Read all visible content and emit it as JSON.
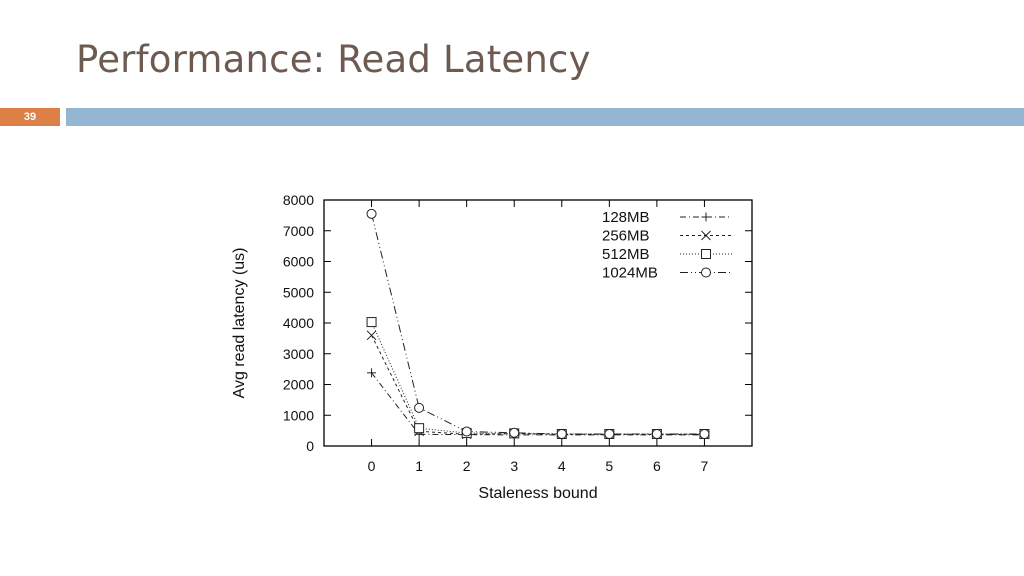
{
  "slide": {
    "title": "Performance: Read Latency",
    "page_number": "39"
  },
  "colors": {
    "title": "#6d5a51",
    "badge": "#dd8047",
    "bar": "#94b6d2"
  },
  "chart_data": {
    "type": "line",
    "title": "",
    "xlabel": "Staleness bound",
    "ylabel": "Avg read latency (us)",
    "x": [
      0,
      1,
      2,
      3,
      4,
      5,
      6,
      7
    ],
    "xlim": [
      -1,
      8
    ],
    "ylim": [
      0,
      8000
    ],
    "x_ticks": [
      "0",
      "1",
      "2",
      "3",
      "4",
      "5",
      "6",
      "7"
    ],
    "y_ticks": [
      "0",
      "1000",
      "2000",
      "3000",
      "4000",
      "5000",
      "6000",
      "7000",
      "8000"
    ],
    "legend_position": "top-right",
    "grid": false,
    "series": [
      {
        "name": "128MB",
        "marker": "plus",
        "dash": "6,3,1,3",
        "values": [
          2380,
          380,
          370,
          360,
          360,
          360,
          360,
          360
        ]
      },
      {
        "name": "256MB",
        "marker": "cross",
        "dash": "3,3",
        "values": [
          3600,
          480,
          380,
          400,
          380,
          380,
          380,
          380
        ]
      },
      {
        "name": "512MB",
        "marker": "square",
        "dash": "1,2",
        "values": [
          4030,
          580,
          420,
          410,
          390,
          390,
          390,
          390
        ]
      },
      {
        "name": "1024MB",
        "marker": "circle",
        "dash": "8,3,1,3,1,3",
        "values": [
          7550,
          1240,
          470,
          430,
          390,
          390,
          390,
          390
        ]
      }
    ]
  }
}
